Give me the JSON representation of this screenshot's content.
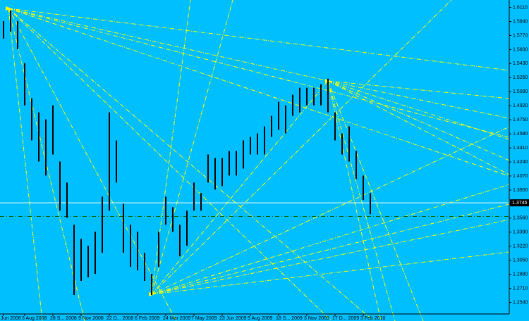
{
  "chart_data": {
    "type": "hilo",
    "color": "#000000",
    "background": "#00bfff",
    "categories": [
      "Jun 2008",
      null,
      null,
      "3 Aug 2008",
      null,
      null,
      null,
      "28 S... 2008",
      null,
      null,
      null,
      "9 Nov 2008",
      null,
      null,
      null,
      "22 D... 2008",
      null,
      null,
      null,
      "6 Feb 2009",
      null,
      null,
      null,
      "24 Mar 2009",
      null,
      null,
      null,
      "7 May 2009",
      null,
      null,
      null,
      "23 Jun 2009",
      null,
      null,
      null,
      "5 Aug 2009",
      null,
      null,
      null,
      "18 S... 2009",
      null,
      null,
      null,
      "3 Nov 2009",
      null,
      null,
      null,
      "17 D... 2009",
      null,
      null,
      null,
      "3 Feb 2010",
      null
    ],
    "high": [
      1.5945,
      1.6073,
      1.5945,
      1.5435,
      1.501,
      1.484,
      1.4755,
      1.4925,
      1.4245,
      1.399,
      1.348,
      1.331,
      1.3225,
      1.3395,
      1.382,
      1.484,
      1.45,
      1.3735,
      1.348,
      1.3395,
      1.314,
      1.2885,
      1.3395,
      1.382,
      1.3693,
      1.348,
      1.365,
      1.399,
      1.3863,
      1.433,
      1.4288,
      1.4288,
      1.4373,
      1.4373,
      1.45,
      1.4543,
      1.4585,
      1.467,
      1.4798,
      1.4968,
      1.4925,
      1.5053,
      1.5138,
      1.5138,
      1.5138,
      1.518,
      1.5248,
      1.484,
      1.4585,
      1.467,
      1.4373,
      1.4075,
      1.3863
    ],
    "low": [
      1.5733,
      1.5818,
      1.5605,
      1.4925,
      1.45,
      1.4245,
      1.4075,
      1.433,
      1.365,
      1.3565,
      1.263,
      1.28,
      1.2843,
      1.2885,
      1.314,
      1.365,
      1.399,
      1.314,
      1.297,
      1.2928,
      1.28,
      1.263,
      1.297,
      1.348,
      1.3395,
      1.3098,
      1.3225,
      1.365,
      1.365,
      1.399,
      1.3905,
      1.3948,
      1.4075,
      1.4075,
      1.416,
      1.433,
      1.433,
      1.433,
      1.4543,
      1.4628,
      1.4585,
      1.4798,
      1.484,
      1.4925,
      1.4925,
      1.4925,
      1.484,
      1.45,
      1.433,
      1.4245,
      1.4033,
      1.3778,
      1.3608
    ],
    "ylim": [
      1.24,
      1.62
    ],
    "yticks": [
      {
        "value": 1.611,
        "label": "1.6110"
      },
      {
        "value": 1.594,
        "label": "1.5940"
      },
      {
        "value": 1.577,
        "label": "1.5770"
      },
      {
        "value": 1.56,
        "label": "1.5600"
      },
      {
        "value": 1.543,
        "label": "1.5430"
      },
      {
        "value": 1.526,
        "label": "1.5260"
      },
      {
        "value": 1.509,
        "label": "1.5090"
      },
      {
        "value": 1.492,
        "label": "1.4920"
      },
      {
        "value": 1.475,
        "label": "1.4750"
      },
      {
        "value": 1.458,
        "label": "1.4580"
      },
      {
        "value": 1.441,
        "label": "1.4410"
      },
      {
        "value": 1.424,
        "label": "1.4240"
      },
      {
        "value": 1.407,
        "label": "1.4070"
      },
      {
        "value": 1.39,
        "label": "1.3900"
      },
      {
        "value": 1.373,
        "label": "1.3730"
      },
      {
        "value": 1.356,
        "label": "1.3560"
      },
      {
        "value": 1.339,
        "label": "1.3390"
      },
      {
        "value": 1.322,
        "label": "1.3220"
      },
      {
        "value": 1.305,
        "label": "1.3050"
      },
      {
        "value": 1.288,
        "label": "1.2880"
      },
      {
        "value": 1.271,
        "label": "1.2710"
      },
      {
        "value": 1.254,
        "label": "1.2540"
      }
    ],
    "current_price": {
      "value": 1.3745,
      "label": "1.3745"
    },
    "level_line": 1.358
  }
}
